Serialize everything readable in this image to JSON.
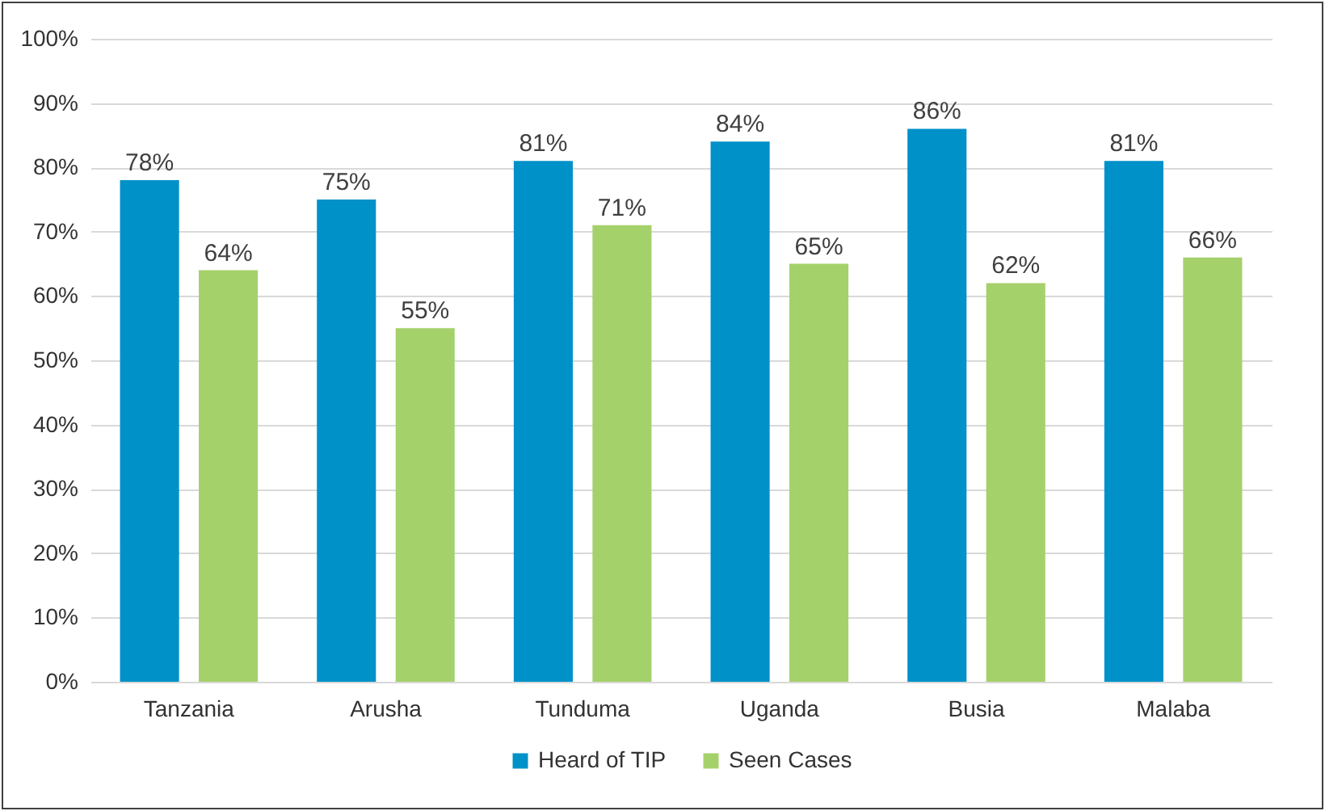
{
  "chart_data": {
    "type": "bar",
    "categories": [
      "Tanzania",
      "Arusha",
      "Tunduma",
      "Uganda",
      "Busia",
      "Malaba"
    ],
    "series": [
      {
        "name": "Heard of TIP",
        "color": "#0091c9",
        "values": [
          78,
          75,
          81,
          84,
          86,
          81
        ],
        "value_labels": [
          "78%",
          "75%",
          "81%",
          "84%",
          "86%",
          "81%"
        ]
      },
      {
        "name": "Seen Cases",
        "color": "#a5d16b",
        "values": [
          64,
          55,
          71,
          65,
          62,
          66
        ],
        "value_labels": [
          "64%",
          "55%",
          "71%",
          "65%",
          "62%",
          "66%"
        ]
      }
    ],
    "ylim": [
      0,
      100
    ],
    "yticks": [
      {
        "value": 0,
        "label": "0%"
      },
      {
        "value": 10,
        "label": "10%"
      },
      {
        "value": 20,
        "label": "20%"
      },
      {
        "value": 30,
        "label": "30%"
      },
      {
        "value": 40,
        "label": "40%"
      },
      {
        "value": 50,
        "label": "50%"
      },
      {
        "value": 60,
        "label": "60%"
      },
      {
        "value": 70,
        "label": "70%"
      },
      {
        "value": 80,
        "label": "80%"
      },
      {
        "value": 90,
        "label": "90%"
      },
      {
        "value": 100,
        "label": "100%"
      }
    ],
    "grid": true,
    "legend": "bottom"
  }
}
